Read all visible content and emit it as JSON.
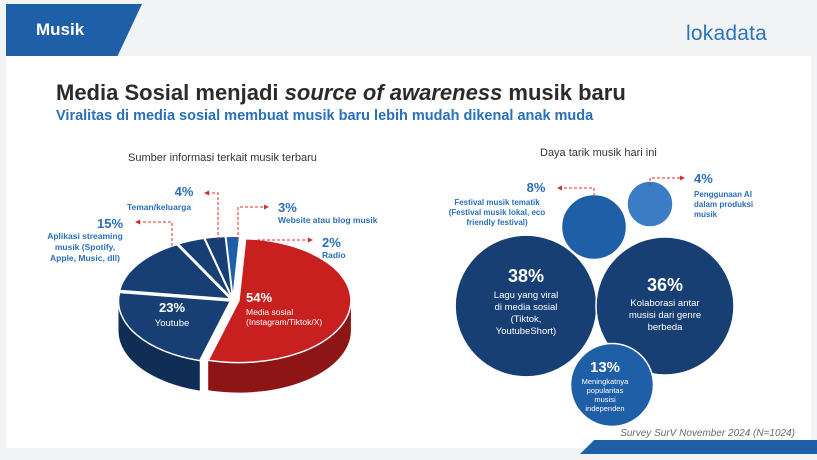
{
  "header": {
    "tag": "Musik",
    "logo": "lokadata",
    "title_prefix": "Media Sosial menjadi ",
    "title_italic": "source of awareness",
    "title_suffix": " musik baru",
    "subtitle": "Viralitas di media sosial membuat musik baru lebih mudah dikenal anak muda"
  },
  "colors": {
    "red": "#c8201f",
    "navy": "#173f73",
    "blue": "#1f5fa8",
    "light_blue": "#3a7cc6",
    "accent": "#2a6fb8"
  },
  "footer": {
    "source": "Survey SurV November 2024 (N=1024)"
  },
  "chart_data": [
    {
      "type": "pie",
      "title": "Sumber informasi terkait musik terbaru",
      "slices": [
        {
          "pct_label": "54%",
          "value": 54,
          "desc": [
            "Media sosial",
            "(Instagram/Tiktok/X)"
          ]
        },
        {
          "pct_label": "23%",
          "value": 23,
          "desc": [
            "Youtube"
          ]
        },
        {
          "pct_label": "15%",
          "value": 15,
          "desc": [
            "Aplikasi streaming",
            "musik (Spotify,",
            "Apple, Music, dll)"
          ]
        },
        {
          "pct_label": "4%",
          "value": 4,
          "desc": [
            "Teman/keluarga"
          ]
        },
        {
          "pct_label": "3%",
          "value": 3,
          "desc": [
            "Website atau blog musik"
          ]
        },
        {
          "pct_label": "2%",
          "value": 2,
          "desc": [
            "Radio"
          ]
        }
      ]
    },
    {
      "type": "bubble",
      "title": "Daya tarik musik hari ini",
      "bubbles": [
        {
          "pct_label": "38%",
          "value": 38,
          "desc": [
            "Lagu yang viral",
            "di media sosial",
            "(Tiktok,",
            "YoutubeShort)"
          ]
        },
        {
          "pct_label": "36%",
          "value": 36,
          "desc": [
            "Kolaborasi antar",
            "musisi dari genre",
            "berbeda"
          ]
        },
        {
          "pct_label": "13%",
          "value": 13,
          "desc": [
            "Meningkatnya",
            "popularitas",
            "musisi",
            "independen"
          ]
        },
        {
          "pct_label": "8%",
          "value": 8,
          "desc": [
            "Festival musik tematik",
            "(Festival musik lokal, eco",
            "friendly festival)"
          ]
        },
        {
          "pct_label": "4%",
          "value": 4,
          "desc": [
            "Penggunaan AI",
            "dalam produksi",
            "musik"
          ]
        }
      ]
    }
  ]
}
